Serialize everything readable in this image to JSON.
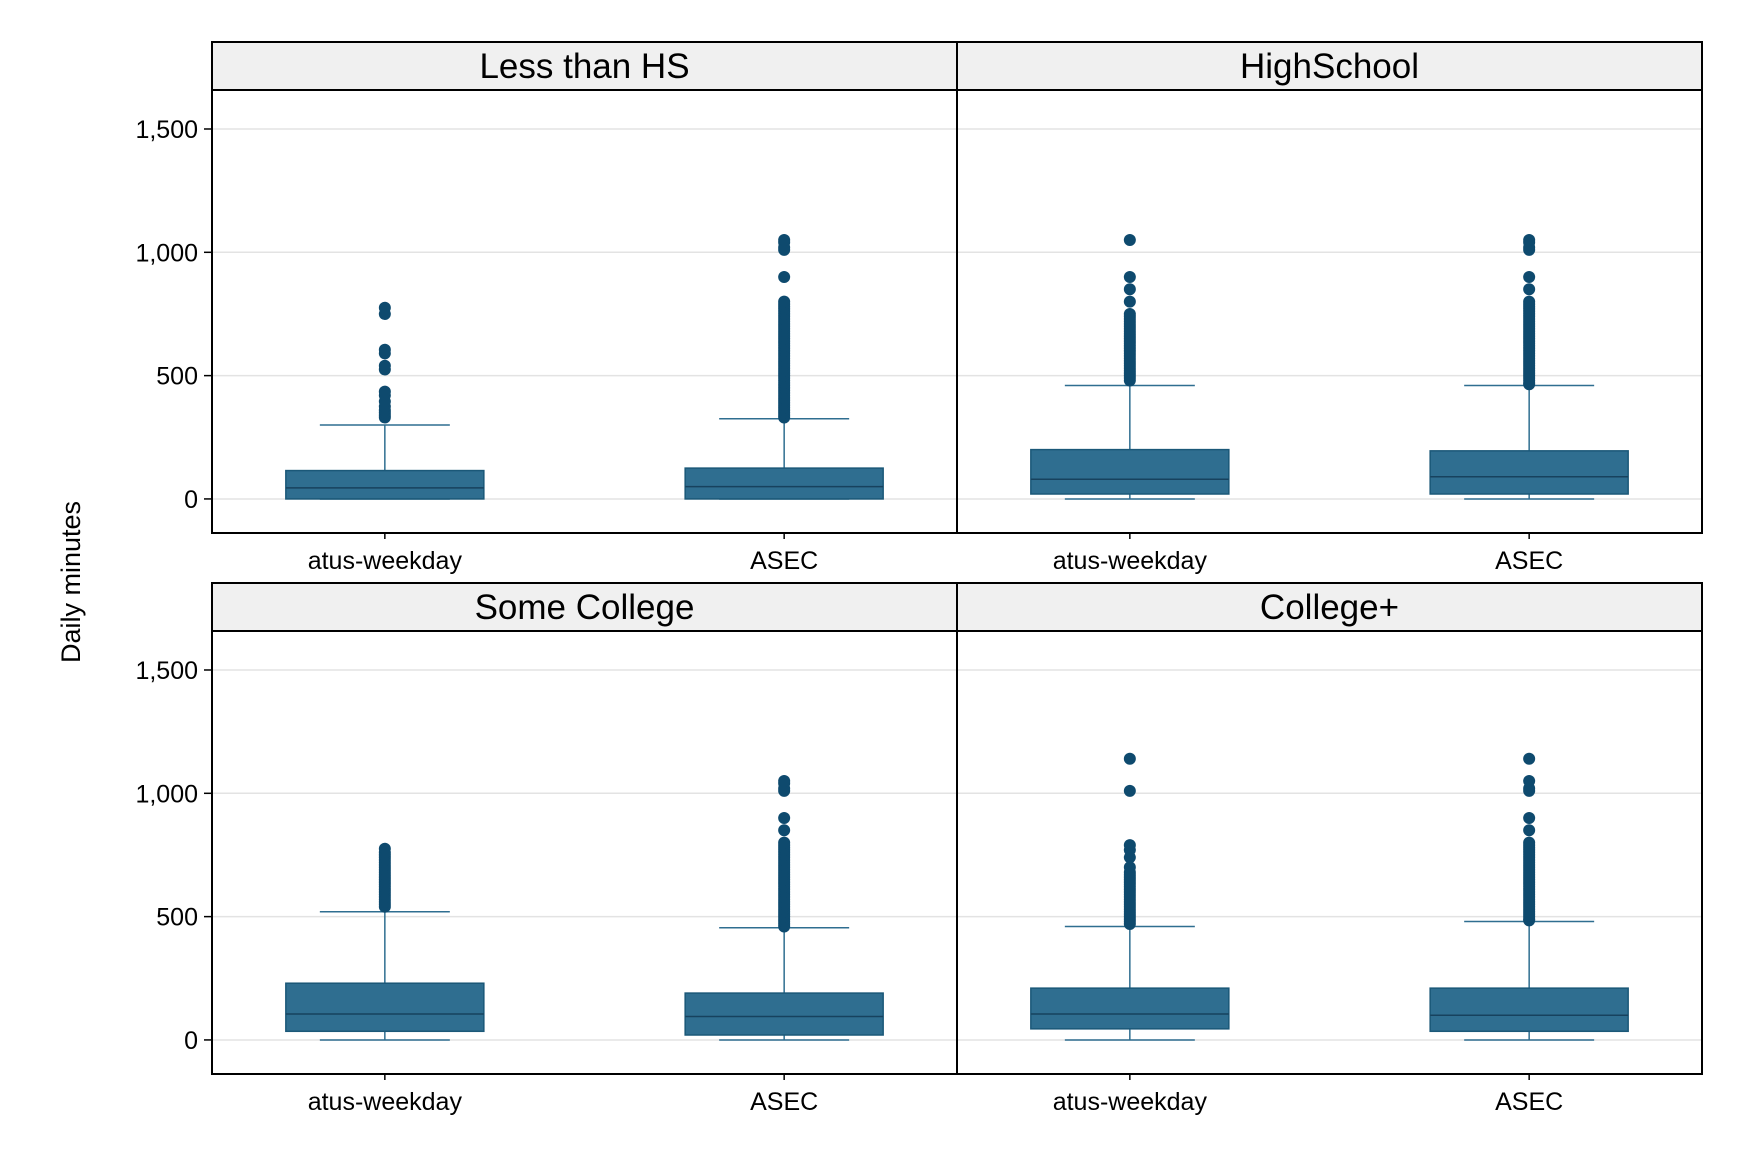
{
  "chart_data": {
    "type": "box",
    "ylabel": "Daily minutes",
    "ylim": [
      -130,
      1650
    ],
    "yticks": [
      0,
      500,
      1000,
      1500
    ],
    "ytick_labels": [
      "0",
      "500",
      "1,000",
      "1,500"
    ],
    "grid": true,
    "colors": {
      "box": "#2f6e90",
      "outlier": "#0e4a6e",
      "strip": "#f0f0f0",
      "grid": "#e3e3e3"
    },
    "categories": [
      "atus-weekday",
      "ASEC"
    ],
    "panels": [
      {
        "title": "Less than HS",
        "groups": [
          {
            "name": "atus-weekday",
            "q1": 0,
            "median": 45,
            "q3": 115,
            "whisker_low": 0,
            "whisker_high": 300,
            "outliers": [
              330,
              340,
              350,
              360,
              375,
              395,
              420,
              435,
              525,
              540,
              590,
              605,
              750,
              775
            ]
          },
          {
            "name": "ASEC",
            "q1": 0,
            "median": 50,
            "q3": 125,
            "whisker_low": 0,
            "whisker_high": 325,
            "outliers": [
              330,
              340,
              350,
              360,
              370,
              380,
              390,
              400,
              410,
              420,
              430,
              440,
              450,
              460,
              470,
              480,
              490,
              500,
              510,
              520,
              530,
              540,
              550,
              560,
              570,
              580,
              590,
              600,
              610,
              620,
              630,
              640,
              650,
              660,
              670,
              680,
              690,
              700,
              710,
              720,
              730,
              740,
              750,
              760,
              770,
              780,
              790,
              800,
              900,
              1010,
              1020,
              1040,
              1050
            ]
          }
        ]
      },
      {
        "title": "HighSchool",
        "groups": [
          {
            "name": "atus-weekday",
            "q1": 20,
            "median": 80,
            "q3": 200,
            "whisker_low": 0,
            "whisker_high": 460,
            "outliers": [
              480,
              490,
              500,
              510,
              520,
              530,
              540,
              550,
              560,
              570,
              580,
              590,
              600,
              610,
              620,
              630,
              640,
              650,
              660,
              670,
              680,
              690,
              700,
              710,
              720,
              730,
              740,
              750,
              800,
              850,
              900,
              1050
            ]
          },
          {
            "name": "ASEC",
            "q1": 20,
            "median": 90,
            "q3": 195,
            "whisker_low": 0,
            "whisker_high": 460,
            "outliers": [
              465,
              470,
              480,
              490,
              500,
              510,
              520,
              530,
              540,
              550,
              560,
              570,
              580,
              590,
              600,
              610,
              620,
              630,
              640,
              650,
              660,
              670,
              680,
              690,
              700,
              710,
              720,
              730,
              740,
              750,
              760,
              770,
              780,
              790,
              800,
              850,
              900,
              1010,
              1020,
              1040,
              1050
            ]
          }
        ]
      },
      {
        "title": "Some College",
        "groups": [
          {
            "name": "atus-weekday",
            "q1": 35,
            "median": 105,
            "q3": 230,
            "whisker_low": 0,
            "whisker_high": 520,
            "outliers": [
              540,
              550,
              560,
              570,
              580,
              590,
              600,
              610,
              620,
              630,
              640,
              650,
              660,
              670,
              680,
              690,
              700,
              710,
              720,
              730,
              740,
              750,
              760,
              775
            ]
          },
          {
            "name": "ASEC",
            "q1": 20,
            "median": 95,
            "q3": 190,
            "whisker_low": 0,
            "whisker_high": 455,
            "outliers": [
              460,
              470,
              480,
              490,
              500,
              510,
              520,
              530,
              540,
              550,
              560,
              570,
              580,
              590,
              600,
              610,
              620,
              630,
              640,
              650,
              660,
              670,
              680,
              690,
              700,
              710,
              720,
              730,
              740,
              750,
              760,
              770,
              780,
              790,
              800,
              850,
              900,
              1010,
              1020,
              1040,
              1050
            ]
          }
        ]
      },
      {
        "title": "College+",
        "groups": [
          {
            "name": "atus-weekday",
            "q1": 45,
            "median": 105,
            "q3": 210,
            "whisker_low": 0,
            "whisker_high": 460,
            "outliers": [
              470,
              480,
              490,
              500,
              510,
              520,
              530,
              540,
              550,
              560,
              570,
              580,
              590,
              600,
              610,
              620,
              630,
              640,
              650,
              660,
              670,
              680,
              700,
              740,
              770,
              790,
              1010,
              1140
            ]
          },
          {
            "name": "ASEC",
            "q1": 35,
            "median": 100,
            "q3": 210,
            "whisker_low": 0,
            "whisker_high": 480,
            "outliers": [
              485,
              490,
              500,
              510,
              520,
              530,
              540,
              550,
              560,
              570,
              580,
              590,
              600,
              610,
              620,
              630,
              640,
              650,
              660,
              670,
              680,
              690,
              700,
              710,
              720,
              730,
              740,
              750,
              760,
              770,
              780,
              790,
              800,
              850,
              900,
              1010,
              1020,
              1050,
              1140
            ]
          }
        ]
      }
    ]
  }
}
